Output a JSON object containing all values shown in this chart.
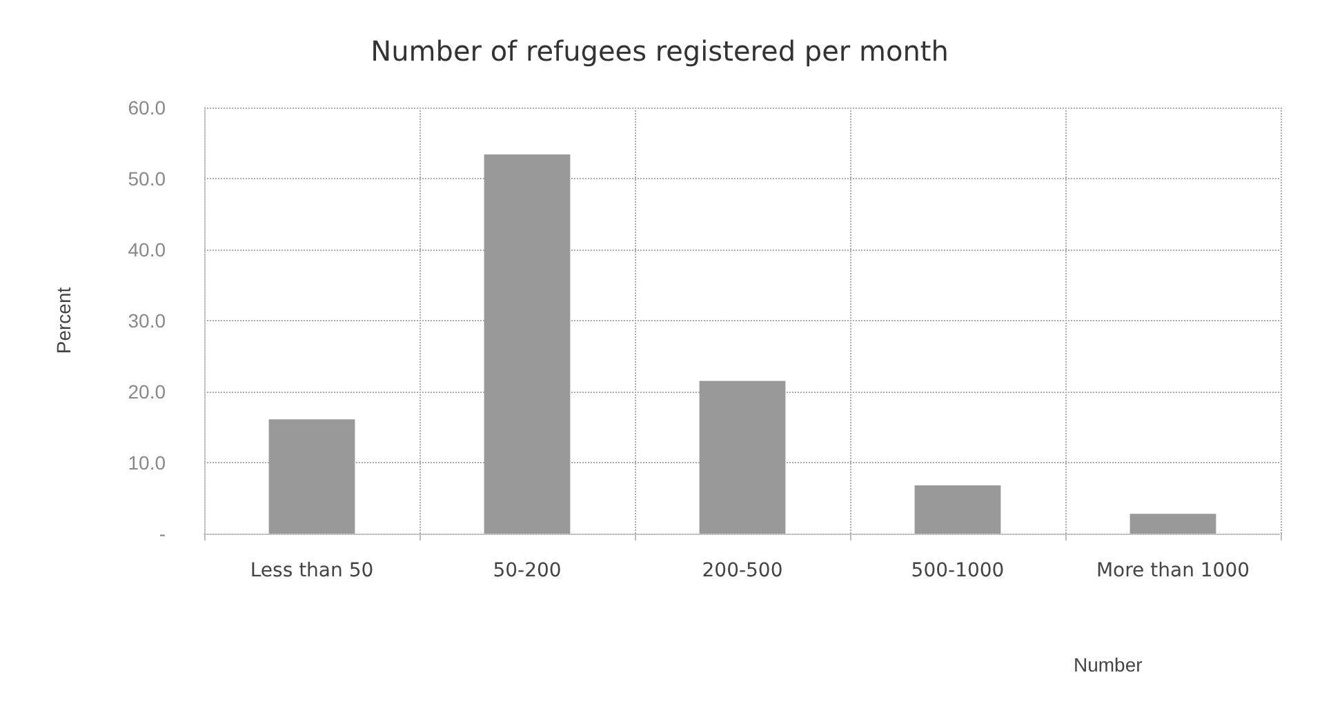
{
  "chart_data": {
    "type": "bar",
    "title": "Number of refugees registered per month",
    "xlabel": "Number",
    "ylabel": "Percent",
    "categories": [
      "Less than 50",
      "50-200",
      "200-500",
      "500-1000",
      "More than 1000"
    ],
    "values": [
      16.1,
      53.4,
      21.5,
      6.8,
      2.8
    ],
    "color": "#999999",
    "ylim": [
      0,
      60
    ],
    "yticks": [
      {
        "value": 0,
        "label": "-"
      },
      {
        "value": 10,
        "label": "10.0"
      },
      {
        "value": 20,
        "label": "20.0"
      },
      {
        "value": 30,
        "label": "30.0"
      },
      {
        "value": 40,
        "label": "40.0"
      },
      {
        "value": 50,
        "label": "50.0"
      },
      {
        "value": 60,
        "label": "60.0"
      }
    ],
    "grid": true
  }
}
